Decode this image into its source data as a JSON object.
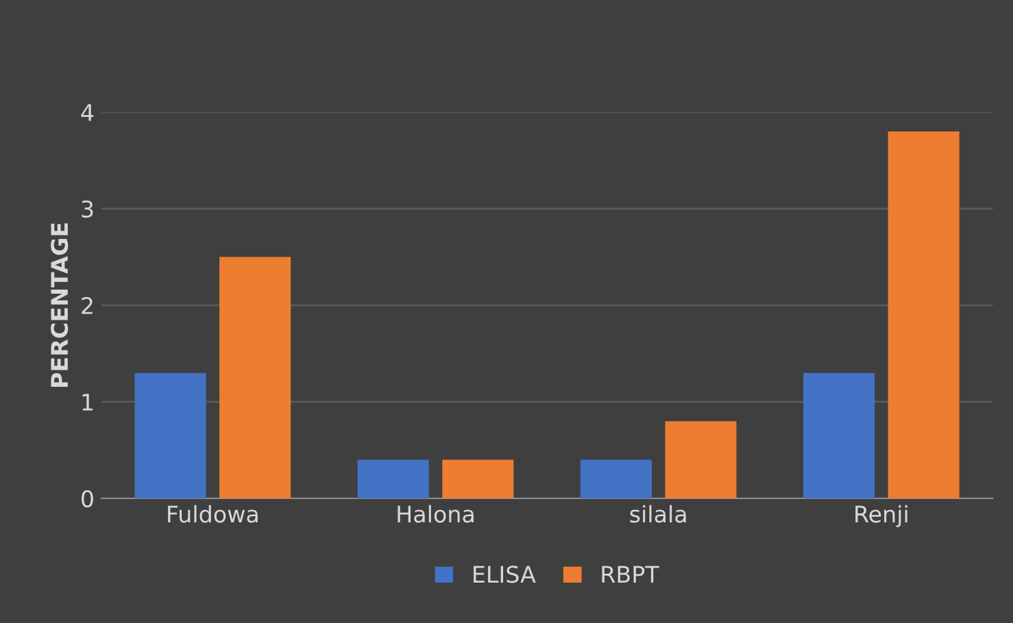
{
  "chart_data": {
    "type": "bar",
    "ylabel": "PERCENTAGE",
    "categories": [
      "Fuldowa",
      "Halona",
      "silala",
      "Renji"
    ],
    "series": [
      {
        "name": "ELISA",
        "color": "#4472c4",
        "values": [
          1.3,
          0.4,
          0.4,
          1.3
        ]
      },
      {
        "name": "RBPT",
        "color": "#ed7d31",
        "values": [
          2.5,
          0.4,
          0.8,
          3.8
        ]
      }
    ],
    "ylim": [
      0,
      4
    ],
    "yticks": [
      0,
      1,
      2,
      3,
      4
    ],
    "grid": "y",
    "legend": "bottom"
  }
}
